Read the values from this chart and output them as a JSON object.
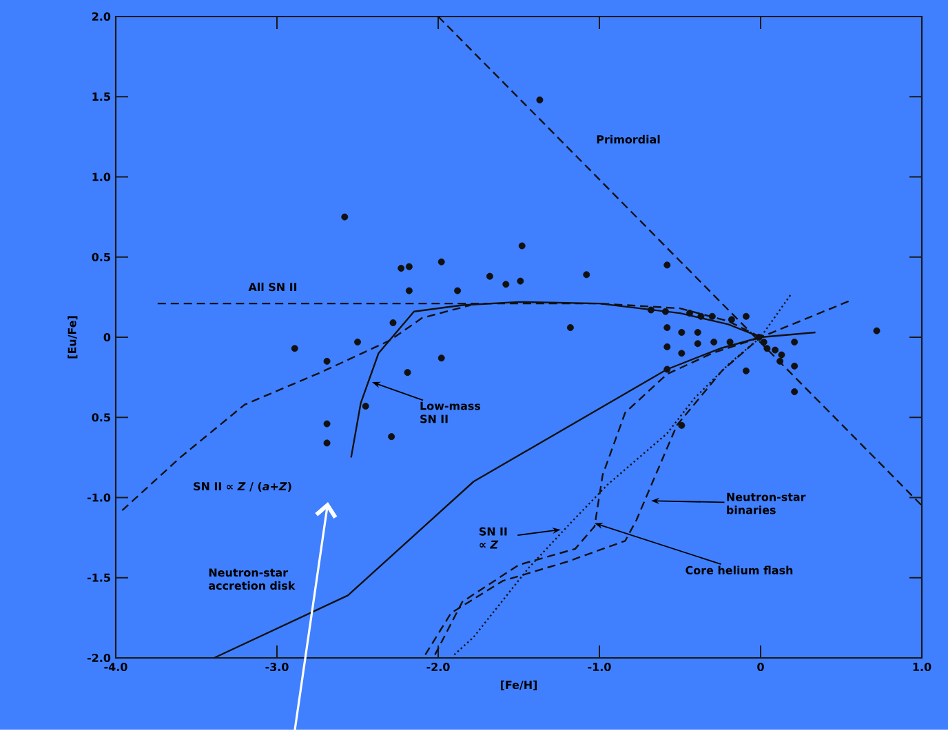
{
  "chart_data": {
    "type": "scatter",
    "xlabel": "[Fe/H]",
    "ylabel": "[Eu/Fe]",
    "xlim": [
      -4,
      1
    ],
    "ylim": [
      -2,
      2
    ],
    "xticks": [
      {
        "value": -4,
        "label": "-4.0"
      },
      {
        "value": -3,
        "label": "-3.0"
      },
      {
        "value": -2,
        "label": "-2.0"
      },
      {
        "value": -1,
        "label": "-1.0"
      },
      0,
      {
        "value": 1,
        "label": "1.0"
      }
    ],
    "yticks": [
      {
        "value": -2,
        "label": "-2.0"
      },
      {
        "value": -1.5,
        "label": "-1.5"
      },
      {
        "value": -1,
        "label": "-1.0"
      },
      {
        "value": -0.5,
        "label": "0.5"
      },
      0,
      0.5,
      {
        "value": 1,
        "label": "1.0"
      },
      1.5,
      {
        "value": 2,
        "label": "2.0"
      }
    ],
    "grid": false,
    "series": [
      {
        "marker": "circle",
        "color": "#111111",
        "x": [
          -2.58,
          -2.23,
          -2.18,
          -1.98,
          -2.18,
          -1.88,
          -2.28,
          -2.89,
          -2.5,
          -2.69,
          -1.98,
          -2.19,
          -1.37,
          -1.48,
          -1.68,
          -1.58,
          -1.49,
          -1.08,
          -0.58,
          -1.18,
          0.72,
          -0.68,
          -0.59,
          -0.44,
          -0.37,
          -0.3,
          -0.18,
          -0.09,
          -0.58,
          -0.49,
          -0.39,
          -0.58,
          -0.49,
          -0.39,
          -0.29,
          -0.19,
          -0.01,
          0.02,
          0.04,
          0.09,
          0.13,
          0.12,
          0.21,
          0.21,
          -0.09,
          -2.45,
          -2.69,
          -2.69,
          -2.29,
          0.21,
          -0.58,
          -0.49
        ],
        "values": [
          0.75,
          0.43,
          0.44,
          0.47,
          0.29,
          0.29,
          0.09,
          -0.07,
          -0.03,
          -0.15,
          -0.13,
          -0.22,
          1.48,
          0.57,
          0.38,
          0.33,
          0.35,
          0.39,
          0.45,
          0.06,
          0.04,
          0.17,
          0.16,
          0.15,
          0.13,
          0.13,
          0.11,
          0.13,
          0.06,
          0.03,
          0.03,
          -0.06,
          -0.1,
          -0.04,
          -0.03,
          -0.03,
          0.0,
          -0.03,
          -0.07,
          -0.08,
          -0.11,
          -0.15,
          -0.03,
          -0.18,
          -0.21,
          -0.43,
          -0.54,
          -0.66,
          -0.62,
          -0.34,
          -0.2,
          -0.55
        ]
      },
      {
        "type": "line",
        "line_style": "dashed",
        "color": "#111111",
        "x": [
          -2.0,
          1.0
        ],
        "values": [
          2.0,
          -1.05
        ]
      },
      {
        "type": "line",
        "line_style": "dashed",
        "color": "#111111",
        "x": [
          -3.74,
          -1.0,
          -0.5,
          -0.2,
          0.0
        ],
        "values": [
          0.21,
          0.21,
          0.18,
          0.1,
          0.0
        ]
      },
      {
        "type": "line",
        "line_style": "solid",
        "color": "#111111",
        "x": [
          -2.54,
          -2.48,
          -2.37,
          -2.15,
          -1.85,
          -1.5,
          -1.0,
          -0.5,
          -0.2,
          0.0
        ],
        "values": [
          -0.75,
          -0.41,
          -0.1,
          0.16,
          0.2,
          0.22,
          0.21,
          0.15,
          0.08,
          0.0
        ]
      },
      {
        "type": "line",
        "line_style": "solid",
        "color": "#111111",
        "x": [
          -3.39,
          -2.56,
          -1.78,
          -0.58,
          -0.25,
          0.0,
          0.34
        ],
        "values": [
          -2.0,
          -1.61,
          -0.9,
          -0.2,
          -0.07,
          0.0,
          0.03
        ]
      },
      {
        "type": "line",
        "line_style": "dashed",
        "color": "#111111",
        "x": [
          -3.96,
          -3.6,
          -3.2,
          -2.73,
          -2.3,
          -2.1,
          -1.8
        ],
        "values": [
          -1.08,
          -0.75,
          -0.42,
          -0.22,
          -0.02,
          0.12,
          0.2
        ]
      },
      {
        "type": "line",
        "line_style": "dotted",
        "color": "#111111",
        "x": [
          -1.9,
          -1.78,
          -1.44,
          -1.18,
          -0.95,
          -0.58,
          -0.41,
          -0.2,
          0.0,
          0.19
        ],
        "values": [
          -1.98,
          -1.87,
          -1.44,
          -1.16,
          -0.92,
          -0.6,
          -0.38,
          -0.17,
          0.0,
          0.27
        ]
      },
      {
        "type": "line",
        "line_style": "dashed",
        "color": "#111111",
        "x": [
          -2.02,
          -1.85,
          -1.5,
          -1.15,
          -1.03,
          -0.98,
          -0.84,
          -0.58,
          -0.3,
          0.0
        ],
        "values": [
          -1.98,
          -1.65,
          -1.42,
          -1.32,
          -1.18,
          -0.86,
          -0.47,
          -0.23,
          -0.1,
          0.0
        ]
      },
      {
        "type": "line",
        "line_style": "dashed",
        "color": "#111111",
        "x": [
          -2.08,
          -1.92,
          -1.6,
          -1.2,
          -0.84,
          -0.77,
          -0.69,
          -0.52,
          -0.24,
          0.0,
          0.56
        ],
        "values": [
          -1.98,
          -1.72,
          -1.52,
          -1.4,
          -1.27,
          -1.14,
          -0.95,
          -0.55,
          -0.21,
          0.0,
          0.23
        ]
      }
    ],
    "annotations": [
      "Primordial",
      "All SN II",
      {
        "text": "Low-mass SN II",
        "x": -2.41,
        "y": -0.28
      },
      "SN II ∝ *Z* / (*a*+*Z*)",
      "Neutron-star accretion disk",
      {
        "text": "SN II ∝ *Z*",
        "x": -1.24,
        "y": -1.2
      },
      {
        "text": "Core helium flash",
        "x": -1.03,
        "y": -1.16
      },
      {
        "text": "Neutron-star binaries",
        "x": -0.68,
        "y": -1.02
      }
    ]
  }
}
